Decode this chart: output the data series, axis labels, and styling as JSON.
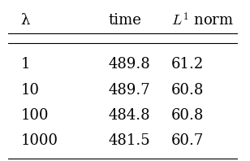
{
  "col_headers": [
    "λ",
    "time",
    "$L^1$ norm"
  ],
  "rows": [
    [
      "1",
      "489.8",
      "61.2"
    ],
    [
      "10",
      "489.7",
      "60.8"
    ],
    [
      "100",
      "484.8",
      "60.8"
    ],
    [
      "1000",
      "481.5",
      "60.7"
    ]
  ],
  "background_color": "#ffffff",
  "text_color": "#000000",
  "header_fontsize": 13,
  "cell_fontsize": 13,
  "fig_width": 3.08,
  "fig_height": 1.98
}
